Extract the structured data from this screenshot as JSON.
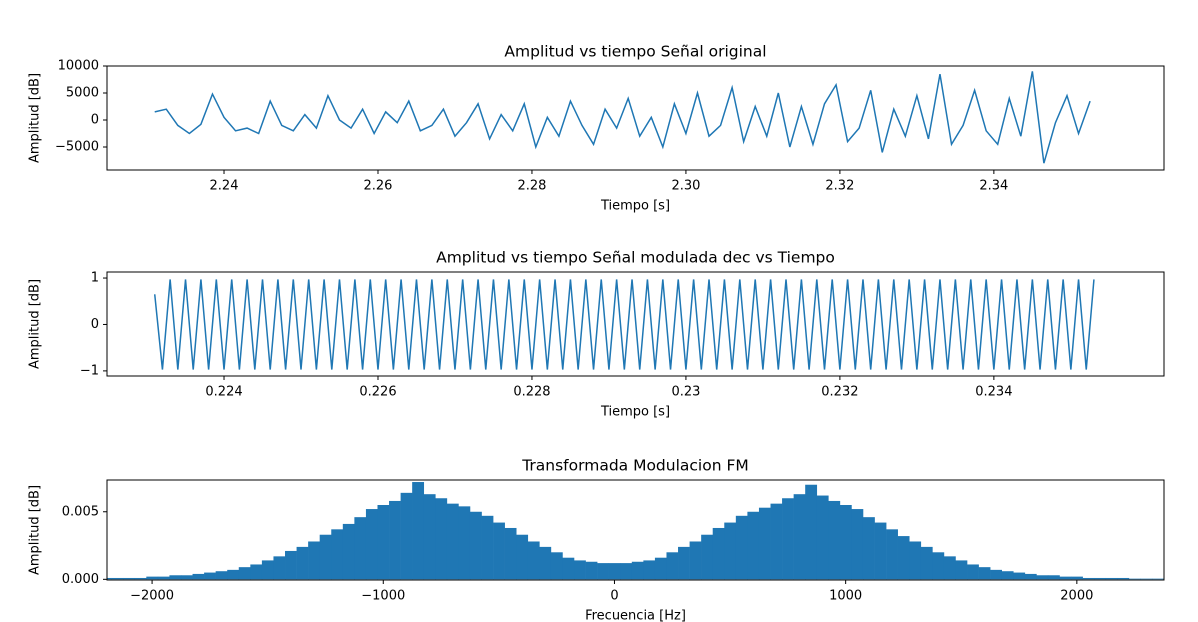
{
  "chart_data": [
    {
      "type": "line",
      "title": "Amplitud vs tiempo Señal original",
      "xlabel": "Tiempo [s]",
      "ylabel": "Amplitud [dB]",
      "xlim": [
        2.2248,
        2.3621
      ],
      "ylim": [
        -9259,
        10000
      ],
      "xticks": [
        2.24,
        2.26,
        2.28,
        {
          "value": 2.3,
          "label": "2.30"
        },
        2.32,
        2.34
      ],
      "yticks": [
        {
          "value": -5000,
          "label": "−5000"
        },
        0,
        5000,
        10000
      ],
      "series": [
        {
          "color": "#1f77b4",
          "x": [
            2.231,
            2.2325,
            2.234,
            2.2355,
            2.237,
            2.2385,
            2.24,
            2.2415,
            2.243,
            2.2445,
            2.246,
            2.2475,
            2.249,
            2.2505,
            2.252,
            2.2535,
            2.255,
            2.2565,
            2.258,
            2.2595,
            2.261,
            2.2625,
            2.264,
            2.2655,
            2.267,
            2.2685,
            2.27,
            2.2715,
            2.273,
            2.2745,
            2.276,
            2.2775,
            2.279,
            2.2805,
            2.282,
            2.2835,
            2.285,
            2.2865,
            2.288,
            2.2895,
            2.291,
            2.2925,
            2.294,
            2.2955,
            2.297,
            2.2985,
            2.3,
            2.3015,
            2.303,
            2.3045,
            2.306,
            2.3075,
            2.309,
            2.3105,
            2.312,
            2.3135,
            2.315,
            2.3165,
            2.318,
            2.3195,
            2.321,
            2.3225,
            2.324,
            2.3255,
            2.327,
            2.3285,
            2.33,
            2.3315,
            2.333,
            2.3345,
            2.336,
            2.3375,
            2.339,
            2.3405,
            2.342,
            2.3435,
            2.345,
            2.3465,
            2.348,
            2.3495,
            2.351,
            2.3525
          ],
          "values": [
            1500,
            2000,
            -1000,
            -2500,
            -800,
            4800,
            500,
            -2000,
            -1500,
            -2500,
            3500,
            -1000,
            -2000,
            1000,
            -1500,
            4500,
            0,
            -1500,
            2000,
            -2500,
            1500,
            -500,
            3500,
            -2000,
            -1000,
            2000,
            -3000,
            -500,
            3000,
            -3500,
            1000,
            -2000,
            3000,
            -5000,
            500,
            -3000,
            3500,
            -1000,
            -4500,
            2000,
            -1500,
            4000,
            -3000,
            500,
            -5000,
            3000,
            -2500,
            5000,
            -3000,
            -1000,
            6000,
            -4000,
            2500,
            -3000,
            5000,
            -5000,
            2500,
            -4500,
            3000,
            6500,
            -4000,
            -1500,
            5500,
            -6000,
            2000,
            -3000,
            4500,
            -3500,
            8500,
            -4500,
            -1000,
            5500,
            -2000,
            -4500,
            4000,
            -3000,
            9000,
            -8000,
            -500,
            4500,
            -2500,
            3500
          ]
        }
      ]
    },
    {
      "type": "line",
      "title": "Amplitud vs tiempo Señal modulada dec vs Tiempo",
      "xlabel": "Tiempo [s]",
      "ylabel": "Amplitud [dB]",
      "xlim": [
        0.22248,
        0.23621
      ],
      "ylim": [
        -1.11,
        1.13
      ],
      "xticks": [
        0.224,
        0.226,
        0.228,
        0.23,
        0.232,
        0.234
      ],
      "yticks": [
        {
          "value": -1,
          "label": "−1"
        },
        0,
        1
      ],
      "series": [
        {
          "color": "#1f77b4",
          "x": [
            0.2231,
            0.2232,
            0.2233,
            0.2234,
            0.2235,
            0.2236,
            0.2237,
            0.2238,
            0.2239,
            0.224,
            0.2241,
            0.2242,
            0.2243,
            0.2244,
            0.2245,
            0.2246,
            0.2247,
            0.2248,
            0.2249,
            0.225,
            0.2251,
            0.2252,
            0.2253,
            0.2254,
            0.2255,
            0.2256,
            0.2257,
            0.2258,
            0.2259,
            0.226,
            0.2261,
            0.2262,
            0.2263,
            0.2264,
            0.2265,
            0.2266,
            0.2267,
            0.2268,
            0.2269,
            0.227,
            0.2271,
            0.2272,
            0.2273,
            0.2274,
            0.2275,
            0.2276,
            0.2277,
            0.2278,
            0.2279,
            0.228,
            0.2281,
            0.2282,
            0.2283,
            0.2284,
            0.2285,
            0.2286,
            0.2287,
            0.2288,
            0.2289,
            0.229,
            0.2291,
            0.2292,
            0.2293,
            0.2294,
            0.2295,
            0.2296,
            0.2297,
            0.2298,
            0.2299,
            0.23,
            0.2301,
            0.2302,
            0.2303,
            0.2304,
            0.2305,
            0.2306,
            0.2307,
            0.2308,
            0.2309,
            0.231,
            0.2311,
            0.2312,
            0.2313,
            0.2314,
            0.2315,
            0.2316,
            0.2317,
            0.2318,
            0.2319,
            0.232,
            0.2321,
            0.2322,
            0.2323,
            0.2324,
            0.2325,
            0.2326,
            0.2327,
            0.2328,
            0.2329,
            0.233,
            0.2331,
            0.2332,
            0.2333,
            0.2334,
            0.2335,
            0.2336,
            0.2337,
            0.2338,
            0.2339,
            0.234,
            0.2341,
            0.2342,
            0.2343,
            0.2344,
            0.2345,
            0.2346,
            0.2347,
            0.2348,
            0.2349,
            0.235,
            0.2351,
            0.2352,
            0.2353
          ],
          "values": [
            0.65,
            -0.97,
            0.97,
            -0.97,
            0.97,
            -0.97,
            0.97,
            -0.97,
            0.97,
            -0.97,
            0.97,
            -0.97,
            0.97,
            -0.97,
            0.97,
            -0.97,
            0.97,
            -0.97,
            0.97,
            -0.97,
            0.97,
            -0.97,
            0.97,
            -0.97,
            0.97,
            -0.97,
            0.97,
            -0.97,
            0.97,
            -0.97,
            0.97,
            -0.97,
            0.97,
            -0.97,
            0.97,
            -0.97,
            0.97,
            -0.97,
            0.97,
            -0.97,
            0.97,
            -0.97,
            0.97,
            -0.97,
            0.97,
            -0.97,
            0.97,
            -0.97,
            0.97,
            -0.97,
            0.97,
            -0.97,
            0.97,
            -0.97,
            0.97,
            -0.97,
            0.97,
            -0.97,
            0.97,
            -0.97,
            0.97,
            -0.97,
            0.97,
            -0.97,
            0.97,
            -0.97,
            0.97,
            -0.97,
            0.97,
            -0.97,
            0.97,
            -0.97,
            0.97,
            -0.97,
            0.97,
            -0.97,
            0.97,
            -0.97,
            0.97,
            -0.97,
            0.97,
            -0.97,
            0.97,
            -0.97,
            0.97,
            -0.97,
            0.97,
            -0.97,
            0.97,
            -0.97,
            0.97,
            -0.97,
            0.97,
            -0.97,
            0.97,
            -0.97,
            0.97,
            -0.97,
            0.97,
            -0.97,
            0.97,
            -0.97,
            0.97,
            -0.97,
            0.97,
            -0.97,
            0.97,
            -0.97,
            0.97,
            -0.97,
            0.97,
            -0.97,
            0.97,
            -0.97,
            0.97,
            -0.97,
            0.97,
            -0.97,
            0.97,
            -0.97,
            0.97,
            -0.97,
            0.97
          ]
        }
      ]
    },
    {
      "type": "bar",
      "title": "Transformada Modulacion FM",
      "xlabel": "Frecuencia [Hz]",
      "ylabel": "Amplitud [dB]",
      "xlim": [
        -2195,
        2377
      ],
      "ylim": [
        -5e-05,
        0.00735
      ],
      "xticks": [
        {
          "value": -2000,
          "label": "−2000"
        },
        {
          "value": -1000,
          "label": "−1000"
        },
        0,
        1000,
        2000
      ],
      "yticks": [
        {
          "value": 0,
          "label": "0.000"
        },
        0.005
      ],
      "color": "#1f77b4",
      "x": [
        -2200,
        -2150,
        -2100,
        -2050,
        -2000,
        -1950,
        -1900,
        -1850,
        -1800,
        -1750,
        -1700,
        -1650,
        -1600,
        -1550,
        -1500,
        -1450,
        -1400,
        -1350,
        -1300,
        -1250,
        -1200,
        -1150,
        -1100,
        -1050,
        -1000,
        -950,
        -900,
        -850,
        -800,
        -750,
        -700,
        -650,
        -600,
        -550,
        -500,
        -450,
        -400,
        -350,
        -300,
        -250,
        -200,
        -150,
        -100,
        -50,
        0,
        50,
        100,
        150,
        200,
        250,
        300,
        350,
        400,
        450,
        500,
        550,
        600,
        650,
        700,
        750,
        800,
        850,
        900,
        950,
        1000,
        1050,
        1100,
        1150,
        1200,
        1250,
        1300,
        1350,
        1400,
        1450,
        1500,
        1550,
        1600,
        1650,
        1700,
        1750,
        1800,
        1850,
        1900,
        1950,
        2000,
        2050,
        2100,
        2150,
        2200,
        2250,
        2300,
        2350
      ],
      "values": [
        0.0001,
        0.0001,
        0.0001,
        0.0001,
        0.0002,
        0.0002,
        0.0003,
        0.0003,
        0.0004,
        0.0005,
        0.0006,
        0.0007,
        0.0009,
        0.0011,
        0.0014,
        0.0017,
        0.0021,
        0.0024,
        0.0028,
        0.0033,
        0.0037,
        0.0041,
        0.0046,
        0.0052,
        0.0055,
        0.0058,
        0.0064,
        0.0072,
        0.0063,
        0.006,
        0.0056,
        0.0054,
        0.005,
        0.0047,
        0.0042,
        0.0038,
        0.0033,
        0.0028,
        0.0024,
        0.002,
        0.0016,
        0.0014,
        0.0013,
        0.0012,
        0.0012,
        0.0012,
        0.0013,
        0.0014,
        0.0016,
        0.002,
        0.0024,
        0.0028,
        0.0033,
        0.0038,
        0.0042,
        0.0047,
        0.005,
        0.0053,
        0.0056,
        0.006,
        0.0063,
        0.007,
        0.0062,
        0.0058,
        0.0055,
        0.0052,
        0.0046,
        0.0042,
        0.0037,
        0.0032,
        0.0028,
        0.0024,
        0.002,
        0.0017,
        0.0014,
        0.0011,
        0.0009,
        0.0007,
        0.0006,
        0.0005,
        0.0004,
        0.0003,
        0.0003,
        0.0002,
        0.0002,
        0.0001,
        0.0001,
        0.0001,
        0.0001,
        5e-05,
        5e-05,
        5e-05
      ]
    }
  ]
}
